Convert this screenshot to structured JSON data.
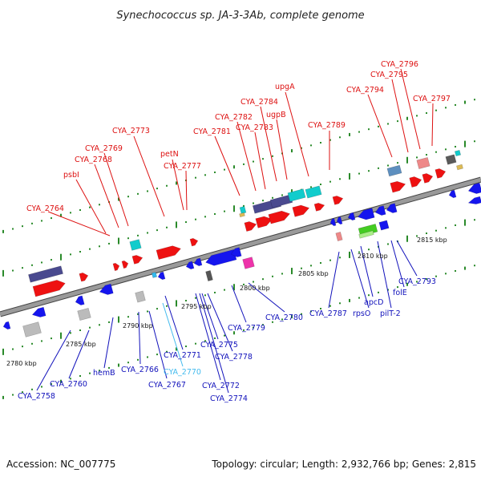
{
  "title": "Synechococcus sp. JA-3-3Ab, complete genome",
  "footer": {
    "accession": "Accession: NC_007775",
    "summary": "Topology: circular; Length: 2,932,766 bp; Genes: 2,815"
  },
  "colors": {
    "plus_label": "#dd1111",
    "minus_label": "#1111bb",
    "rna_label": "#44bbee",
    "backbone": "#8c8c8c",
    "tick": "#2a8a2a"
  },
  "scale_labels": [
    "2780 kbp",
    "2785 kbp",
    "2790 kbp",
    "2795 kbp",
    "2800 kbp",
    "2805 kbp",
    "2810 kbp",
    "2815 kbp"
  ],
  "plus_labels": [
    "CYA_2764",
    "psbI",
    "CYA_2768",
    "CYA_2769",
    "CYA_2773",
    "petN",
    "CYA_2777",
    "CYA_2781",
    "CYA_2782",
    "CYA_2783",
    "CYA_2784",
    "ugpB",
    "upgA",
    "CYA_2789",
    "CYA_2794",
    "CYA_2795",
    "CYA_2796",
    "CYA_2797"
  ],
  "minus_labels": [
    "CYA_2758",
    "CYA_2760",
    "hemB",
    "CYA_2766",
    "CYA_2767",
    "CYA_2771",
    "CYA_2772",
    "CYA_2774",
    "CYA_2775",
    "CYA_2778",
    "CYA_2779",
    "CYA_2780",
    "CYA_2787",
    "rpsO",
    "apcD",
    "pilT-2",
    "folE",
    "CYA_2793"
  ],
  "rna_labels": [
    "CYA_2770"
  ]
}
